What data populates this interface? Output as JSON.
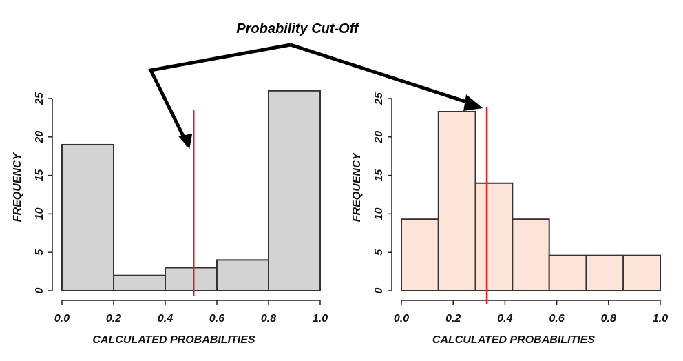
{
  "annotation": {
    "text": "Probability Cut-Off"
  },
  "colors": {
    "left_fill": "#d3d3d3",
    "right_fill": "#fde4d8",
    "bar_stroke": "#333333",
    "cutoff": "#e02020",
    "arrow": "#000000"
  },
  "chart_data": [
    {
      "type": "bar",
      "bins": [
        [
          0.0,
          0.2
        ],
        [
          0.2,
          0.4
        ],
        [
          0.4,
          0.6
        ],
        [
          0.6,
          0.8
        ],
        [
          0.8,
          1.0
        ]
      ],
      "values": [
        19,
        2,
        3,
        4,
        26
      ],
      "cutoff": 0.51,
      "xlabel": "CALCULATED PROBABILITIES",
      "ylabel": "FREQUENCY",
      "xlim": [
        0,
        1
      ],
      "ylim": [
        0,
        25
      ],
      "xticks": [
        "0.0",
        "0.2",
        "0.4",
        "0.6",
        "0.8",
        "1.0"
      ],
      "yticks": [
        "0",
        "5",
        "10",
        "15",
        "20",
        "25"
      ],
      "grid": false
    },
    {
      "type": "bar",
      "bins": [
        [
          0.0,
          0.143
        ],
        [
          0.143,
          0.286
        ],
        [
          0.286,
          0.429
        ],
        [
          0.429,
          0.571
        ],
        [
          0.571,
          0.714
        ],
        [
          0.714,
          0.857
        ],
        [
          0.857,
          1.0
        ]
      ],
      "values": [
        9.3,
        23.3,
        14,
        9.3,
        4.6,
        4.6,
        4.6
      ],
      "cutoff": 0.33,
      "xlabel": "CALCULATED PROBABILITIES",
      "ylabel": "FREQUENCY",
      "xlim": [
        0,
        1
      ],
      "ylim": [
        0,
        25
      ],
      "xticks": [
        "0.0",
        "0.2",
        "0.4",
        "0.6",
        "0.8",
        "1.0"
      ],
      "yticks": [
        "0",
        "5",
        "10",
        "15",
        "20",
        "25"
      ],
      "grid": false
    }
  ]
}
